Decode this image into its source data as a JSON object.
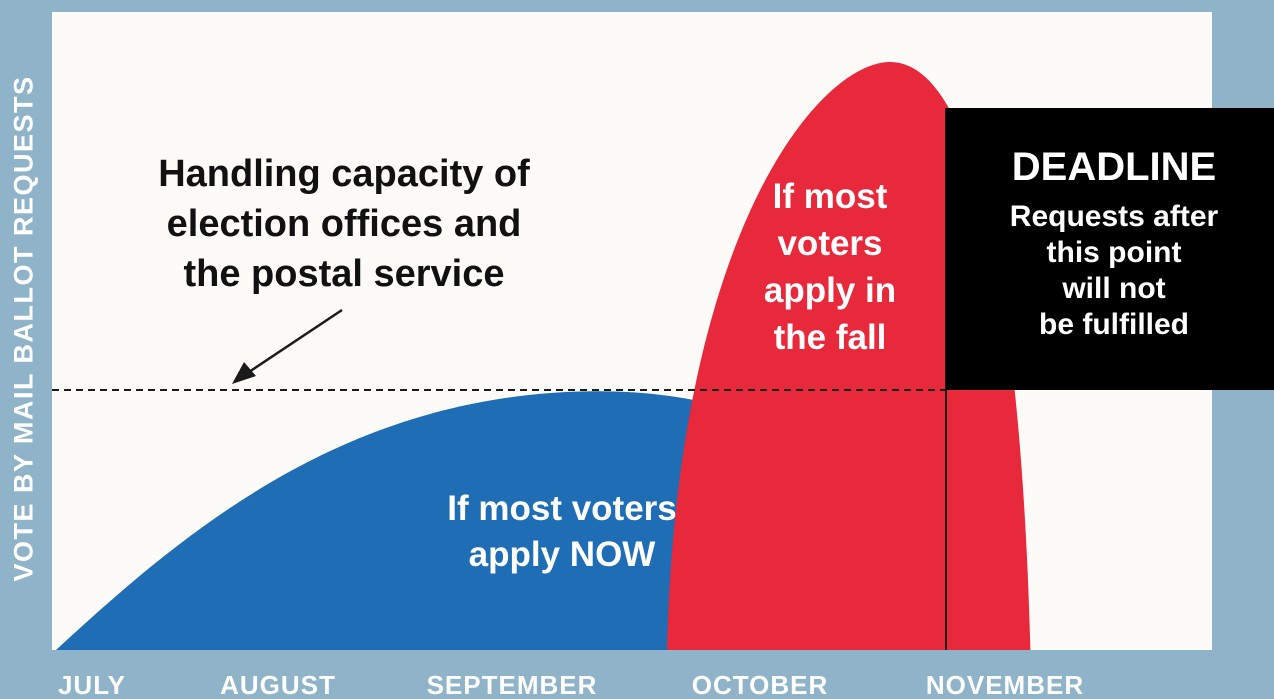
{
  "chart_data": {
    "type": "area",
    "title": "",
    "xlabel": "",
    "ylabel": "VOTE BY MAIL BALLOT REQUESTS",
    "categories": [
      "JULY",
      "AUGUST",
      "SEPTEMBER",
      "OCTOBER",
      "NOVEMBER"
    ],
    "grid": false,
    "series": [
      {
        "name": "If most voters apply NOW",
        "color": "#1f6db4",
        "start_month": 0.0,
        "peak_month": 2.45,
        "end_month": 3.9,
        "relative_peak": 0.44
      },
      {
        "name": "If most voters apply in the fall",
        "color": "#e8283b",
        "start_month": 3.0,
        "peak_month": 3.4,
        "end_month": 4.05,
        "relative_peak": 1.0
      }
    ],
    "capacity_level": 0.45,
    "deadline_month": 3.85,
    "annotations": {
      "capacity": [
        "Handling capacity of",
        "election offices and",
        "the postal service"
      ],
      "fall": [
        "If most",
        "voters",
        "apply in",
        "the fall"
      ],
      "now": [
        "If most voters",
        "apply NOW"
      ],
      "deadline_title": "DEADLINE",
      "deadline_text": [
        "Requests after",
        "this point",
        "will not",
        "be fulfilled"
      ]
    },
    "colors": {
      "background": "#8fb4c9",
      "plot_background": "#fcfbf7",
      "deadline_box": "#000000",
      "axis_text": "#ffffff"
    }
  }
}
